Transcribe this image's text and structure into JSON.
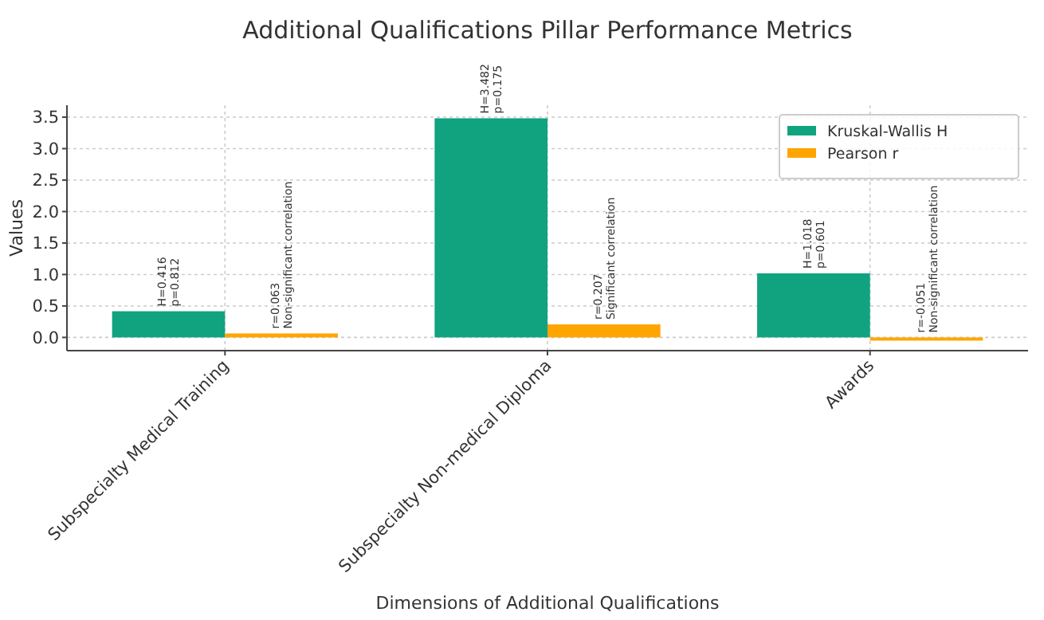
{
  "chart_data": {
    "type": "bar",
    "title": "Additional Qualifications Pillar Performance Metrics",
    "xlabel": "Dimensions of Additional Qualifications",
    "ylabel": "Values",
    "categories": [
      "Subspecialty Medical Training",
      "Subspecialty Non-medical Diploma",
      "Awards"
    ],
    "series": [
      {
        "name": "Kruskal-Wallis H",
        "color": "#11a37f",
        "values": [
          0.416,
          3.482,
          1.018
        ],
        "value_labels": [
          "H=0.416\np=0.812",
          "H=3.482\np=0.175",
          "H=1.018\np=0.601"
        ]
      },
      {
        "name": "Pearson r",
        "color": "#ffa500",
        "values": [
          0.063,
          0.207,
          -0.051
        ],
        "value_labels": [
          "r=0.063\nNon-significant correlation",
          "r=0.207\nSignificant correlation",
          "r=-0.051\nNon-significant correlation"
        ]
      }
    ],
    "ylim": [
      -0.21,
      3.69
    ],
    "yticks": [
      {
        "value": 0,
        "label": "0.0"
      },
      {
        "value": 0.5,
        "label": "0.5"
      },
      {
        "value": 1,
        "label": "1.0"
      },
      {
        "value": 1.5,
        "label": "1.5"
      },
      {
        "value": 2,
        "label": "2.0"
      },
      {
        "value": 2.5,
        "label": "2.5"
      },
      {
        "value": 3,
        "label": "3.0"
      },
      {
        "value": 3.5,
        "label": "3.5"
      }
    ],
    "grid": true,
    "legend": "top right"
  }
}
